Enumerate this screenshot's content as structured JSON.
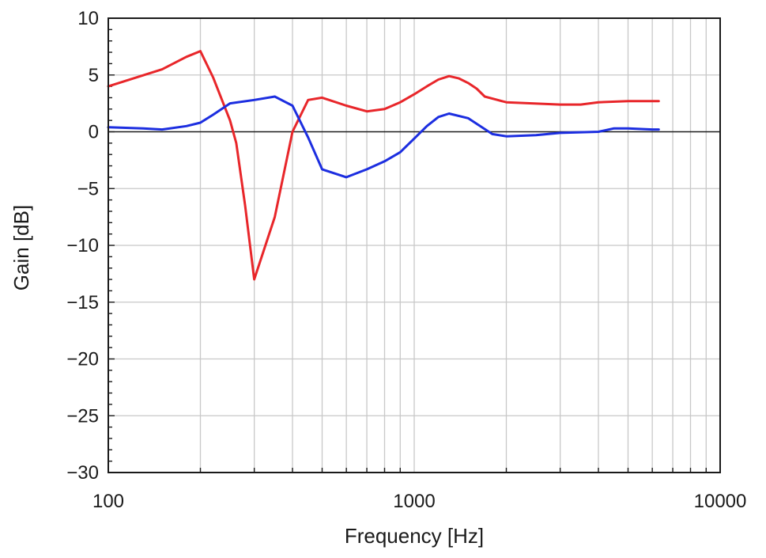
{
  "chart_data": {
    "type": "line",
    "xlabel": "Frequency [Hz]",
    "ylabel": "Gain [dB]",
    "x_scale": "log",
    "xlim": [
      100,
      10000
    ],
    "ylim": [
      -30,
      10
    ],
    "x_ticks": [
      100,
      1000,
      10000
    ],
    "x_tick_labels": [
      "100",
      "1000",
      "10000"
    ],
    "y_ticks": [
      10,
      5,
      0,
      -5,
      -10,
      -15,
      -20,
      -25,
      -30
    ],
    "y_tick_labels": [
      "10",
      "5",
      "0",
      "−5",
      "−10",
      "−15",
      "−20",
      "−25",
      "−30"
    ],
    "grid": true,
    "zero_line": true,
    "series": [
      {
        "color": "#e8262a",
        "points": [
          [
            100,
            4.0
          ],
          [
            150,
            5.5
          ],
          [
            180,
            6.6
          ],
          [
            200,
            7.1
          ],
          [
            220,
            4.8
          ],
          [
            250,
            1.0
          ],
          [
            262,
            -1.0
          ],
          [
            280,
            -6.5
          ],
          [
            300,
            -13.0
          ],
          [
            350,
            -7.5
          ],
          [
            400,
            0.0
          ],
          [
            450,
            2.8
          ],
          [
            500,
            3.0
          ],
          [
            600,
            2.3
          ],
          [
            700,
            1.8
          ],
          [
            800,
            2.0
          ],
          [
            900,
            2.6
          ],
          [
            1000,
            3.3
          ],
          [
            1100,
            4.0
          ],
          [
            1200,
            4.6
          ],
          [
            1300,
            4.9
          ],
          [
            1400,
            4.7
          ],
          [
            1500,
            4.3
          ],
          [
            1600,
            3.8
          ],
          [
            1700,
            3.1
          ],
          [
            2000,
            2.6
          ],
          [
            3000,
            2.4
          ],
          [
            3500,
            2.4
          ],
          [
            4000,
            2.6
          ],
          [
            5000,
            2.7
          ],
          [
            6300,
            2.7
          ]
        ]
      },
      {
        "color": "#1c2ee0",
        "points": [
          [
            100,
            0.4
          ],
          [
            130,
            0.3
          ],
          [
            150,
            0.2
          ],
          [
            180,
            0.5
          ],
          [
            200,
            0.8
          ],
          [
            220,
            1.5
          ],
          [
            250,
            2.5
          ],
          [
            300,
            2.8
          ],
          [
            350,
            3.1
          ],
          [
            400,
            2.3
          ],
          [
            450,
            -0.5
          ],
          [
            500,
            -3.3
          ],
          [
            600,
            -4.0
          ],
          [
            700,
            -3.3
          ],
          [
            800,
            -2.6
          ],
          [
            900,
            -1.8
          ],
          [
            1000,
            -0.6
          ],
          [
            1100,
            0.5
          ],
          [
            1200,
            1.3
          ],
          [
            1300,
            1.6
          ],
          [
            1500,
            1.2
          ],
          [
            1800,
            -0.2
          ],
          [
            2000,
            -0.4
          ],
          [
            2500,
            -0.3
          ],
          [
            3000,
            -0.1
          ],
          [
            4000,
            0.0
          ],
          [
            4500,
            0.3
          ],
          [
            5000,
            0.3
          ],
          [
            6000,
            0.2
          ],
          [
            6300,
            0.2
          ]
        ]
      }
    ]
  }
}
